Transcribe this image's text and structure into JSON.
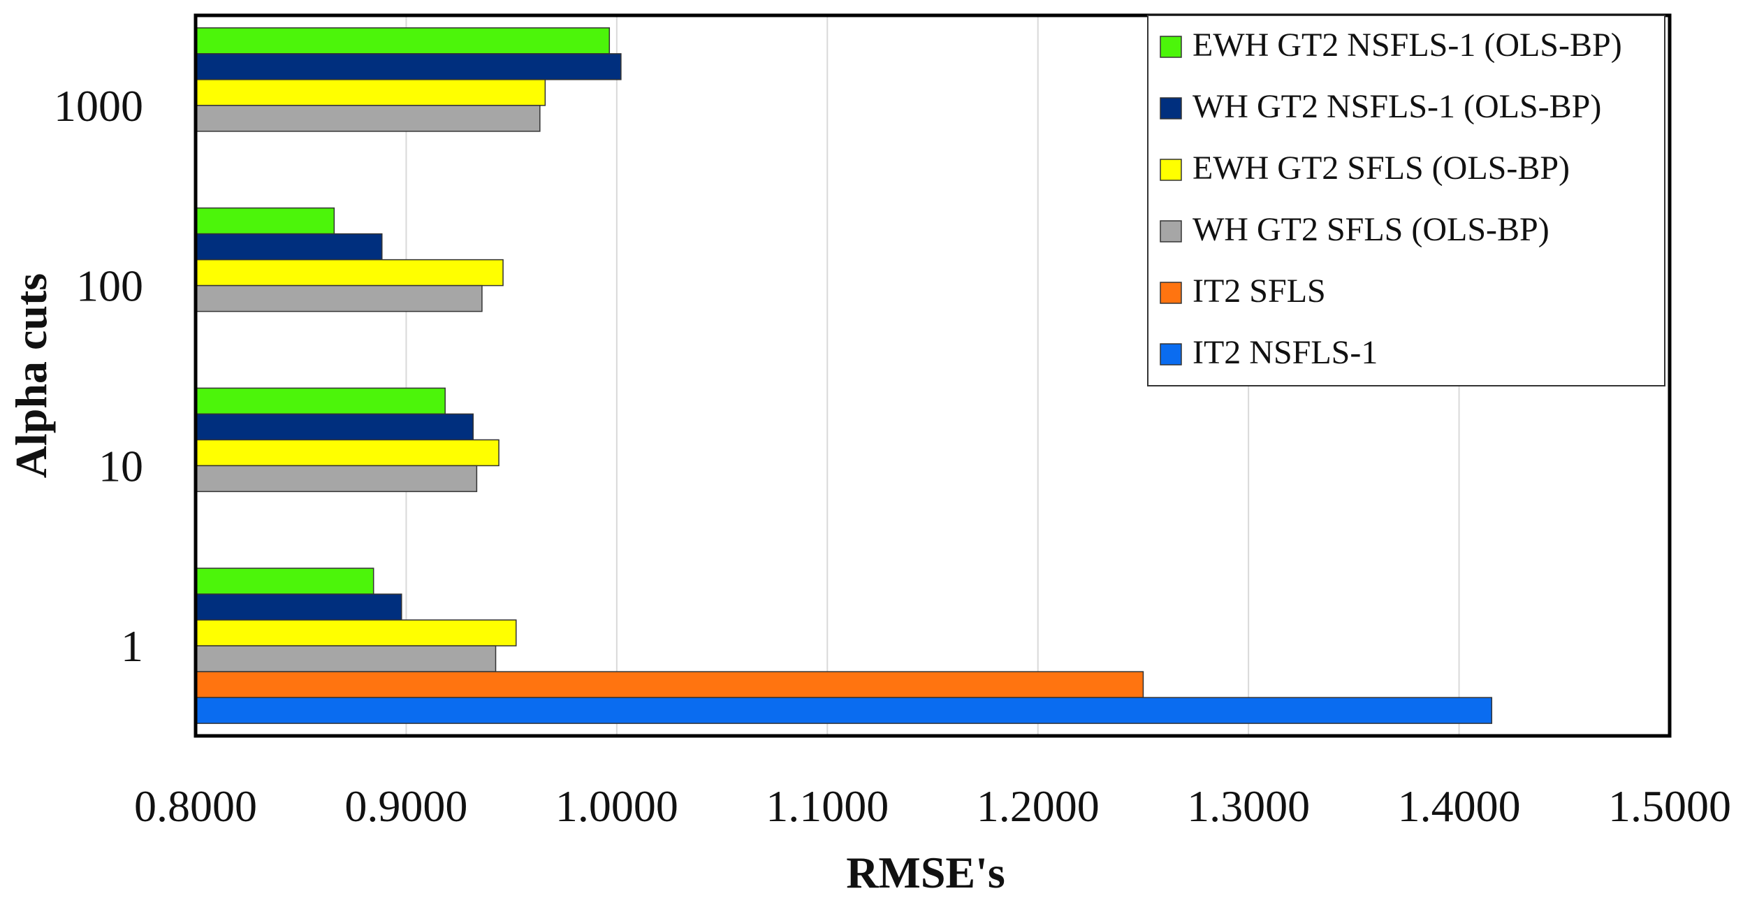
{
  "chart_data": {
    "type": "bar",
    "orientation": "horizontal",
    "xlabel": "RMSE's",
    "ylabel": "Alpha cuts",
    "xlim": [
      0.8,
      1.5
    ],
    "x_ticks": [
      "0.8000",
      "0.9000",
      "1.0000",
      "1.1000",
      "1.2000",
      "1.3000",
      "1.4000",
      "1.5000"
    ],
    "categories": [
      "1",
      "10",
      "100",
      "1000"
    ],
    "grid": "vertical",
    "legend_position": "top-right",
    "series": [
      {
        "name": "EWH GT2 NSFLS-1 (OLS-BP)",
        "color": "#4CF50A",
        "values": [
          0.8845,
          0.9185,
          0.8658,
          0.9965
        ]
      },
      {
        "name": "WH GT2 NSFLS-1 (OLS-BP)",
        "color": "#002F7E",
        "values": [
          0.8978,
          0.9318,
          0.8885,
          1.002
        ]
      },
      {
        "name": "EWH GT2 SFLS (OLS-BP)",
        "color": "#FFFF00",
        "values": [
          0.9522,
          0.944,
          0.946,
          0.966
        ]
      },
      {
        "name": "WH GT2 SFLS (OLS-BP)",
        "color": "#A6A6A6",
        "values": [
          0.9425,
          0.9335,
          0.936,
          0.9635
        ]
      },
      {
        "name": "IT2 SFLS",
        "color": "#FF7410",
        "values": [
          1.25,
          null,
          null,
          null
        ]
      },
      {
        "name": "IT2 NSFLS-1",
        "color": "#0A6CF0",
        "values": [
          1.4155,
          null,
          null,
          null
        ]
      }
    ]
  }
}
